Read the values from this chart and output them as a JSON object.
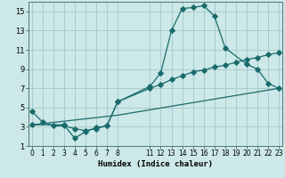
{
  "xlabel": "Humidex (Indice chaleur)",
  "bg_color": "#cce8e8",
  "grid_color": "#aacccc",
  "line_color": "#1a6b6b",
  "line1_x": [
    0,
    1,
    2,
    3,
    4,
    5,
    6,
    7,
    8,
    11,
    12,
    13,
    14,
    15,
    16,
    17,
    18,
    20,
    21,
    22,
    23
  ],
  "line1_y": [
    4.6,
    3.5,
    3.1,
    3.1,
    2.8,
    2.6,
    2.8,
    3.1,
    5.6,
    7.2,
    8.6,
    13.0,
    15.3,
    15.4,
    15.6,
    14.5,
    11.2,
    9.5,
    9.0,
    7.5,
    7.0
  ],
  "line2_x": [
    0,
    3,
    4,
    5,
    6,
    7,
    8,
    11,
    12,
    13,
    14,
    15,
    16,
    17,
    18,
    19,
    20,
    21,
    22,
    23
  ],
  "line2_y": [
    3.2,
    3.2,
    1.8,
    2.5,
    2.9,
    3.1,
    5.6,
    7.0,
    7.4,
    7.9,
    8.3,
    8.7,
    8.9,
    9.2,
    9.4,
    9.7,
    10.0,
    10.2,
    10.5,
    10.7
  ],
  "line3_x": [
    0,
    8,
    23
  ],
  "line3_y": [
    3.2,
    4.2,
    7.0
  ],
  "ylim": [
    1,
    16
  ],
  "yticks": [
    1,
    3,
    5,
    7,
    9,
    11,
    13,
    15
  ],
  "xlim": [
    -0.3,
    23.3
  ],
  "xtick_vals": [
    0,
    1,
    2,
    3,
    4,
    5,
    6,
    7,
    8,
    11,
    12,
    13,
    14,
    15,
    16,
    17,
    18,
    19,
    20,
    21,
    22,
    23
  ],
  "xtick_labels": [
    "0",
    "1",
    "2",
    "3",
    "4",
    "5",
    "6",
    "7",
    "8",
    "11",
    "12",
    "13",
    "14",
    "15",
    "16",
    "17",
    "18",
    "19",
    "20",
    "21",
    "22",
    "23"
  ]
}
